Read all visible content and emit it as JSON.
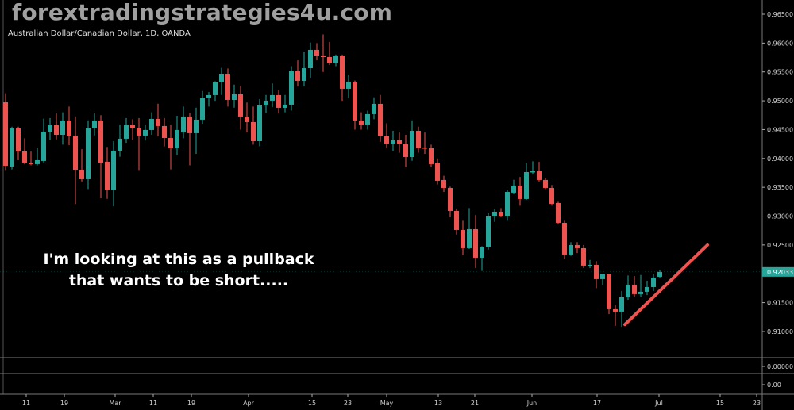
{
  "header": {
    "symbol_title": "Australian Dollar/Canadian Dollar, 1D, OANDA",
    "watermark": "forextradingstrategies4u.com"
  },
  "annotation": {
    "line1": "I'm looking at this as a pullback",
    "line2": "that wants to be short....."
  },
  "colors": {
    "up": "#26a69a",
    "down": "#ef5350",
    "trendline": "#ef5350",
    "background": "#000000",
    "last_price_badge": "#26a69a"
  },
  "chart_data": {
    "type": "candlestick",
    "title": "Australian Dollar/Canadian Dollar, 1D, OANDA",
    "ylim": [
      0.9075,
      0.9675
    ],
    "y_ticks": [
      "0.96500",
      "0.96000",
      "0.95500",
      "0.95000",
      "0.94500",
      "0.94000",
      "0.93500",
      "0.93000",
      "0.92500",
      "0.91500",
      "0.91000"
    ],
    "last_price": "0.92033",
    "x_ticks": [
      "11",
      "19",
      "Mar",
      "11",
      "19",
      "Apr",
      "15",
      "23",
      "May",
      "13",
      "21",
      "Jun",
      "17",
      "Jul",
      "15",
      "23"
    ],
    "sub_panes": [
      {
        "value_label": "0.00000"
      },
      {
        "value_label": "0.00"
      }
    ],
    "grid": false,
    "ohlc_fields": [
      "open",
      "high",
      "low",
      "close"
    ],
    "candles": [
      [
        0.94974,
        0.9513,
        0.938,
        0.93874
      ],
      [
        0.9386,
        0.9455,
        0.9381,
        0.9452
      ],
      [
        0.9452,
        0.9455,
        0.9397,
        0.94122
      ],
      [
        0.94122,
        0.9435,
        0.939,
        0.93929
      ],
      [
        0.93929,
        0.9412,
        0.9388,
        0.93902
      ],
      [
        0.93902,
        0.9418,
        0.9388,
        0.9397
      ],
      [
        0.93957,
        0.9469,
        0.9393,
        0.94465
      ],
      [
        0.94465,
        0.947,
        0.9432,
        0.94575
      ],
      [
        0.94575,
        0.9478,
        0.9433,
        0.9441
      ],
      [
        0.9441,
        0.948,
        0.9424,
        0.94658
      ],
      [
        0.94658,
        0.949,
        0.9423,
        0.94383
      ],
      [
        0.94397,
        0.9473,
        0.9321,
        0.93805
      ],
      [
        0.93805,
        0.9416,
        0.936,
        0.9364
      ],
      [
        0.9364,
        0.9466,
        0.9347,
        0.9452
      ],
      [
        0.9452,
        0.9478,
        0.944,
        0.94658
      ],
      [
        0.94658,
        0.9475,
        0.9331,
        0.93929
      ],
      [
        0.93943,
        0.942,
        0.933,
        0.93448
      ],
      [
        0.93448,
        0.943,
        0.9317,
        0.94135
      ],
      [
        0.94135,
        0.9459,
        0.9403,
        0.94342
      ],
      [
        0.94342,
        0.947,
        0.9427,
        0.94589
      ],
      [
        0.94589,
        0.9468,
        0.9432,
        0.9452
      ],
      [
        0.9452,
        0.947,
        0.938,
        0.94397
      ],
      [
        0.94397,
        0.9459,
        0.9431,
        0.94493
      ],
      [
        0.94493,
        0.948,
        0.9441,
        0.94685
      ],
      [
        0.94685,
        0.9495,
        0.9438,
        0.94562
      ],
      [
        0.94562,
        0.947,
        0.9421,
        0.94355
      ],
      [
        0.94355,
        0.9459,
        0.9381,
        0.94177
      ],
      [
        0.94177,
        0.9474,
        0.9406,
        0.94493
      ],
      [
        0.94452,
        0.949,
        0.9435,
        0.94727
      ],
      [
        0.94727,
        0.9479,
        0.9388,
        0.94438
      ],
      [
        0.94438,
        0.9488,
        0.9408,
        0.94672
      ],
      [
        0.94672,
        0.9517,
        0.946,
        0.95043
      ],
      [
        0.95043,
        0.9515,
        0.949,
        0.95098
      ],
      [
        0.95098,
        0.9534,
        0.95,
        0.95318
      ],
      [
        0.95318,
        0.9557,
        0.951,
        0.95469
      ],
      [
        0.95469,
        0.9556,
        0.949,
        0.95015
      ],
      [
        0.95015,
        0.9528,
        0.9488,
        0.95112
      ],
      [
        0.95112,
        0.9526,
        0.945,
        0.94727
      ],
      [
        0.94727,
        0.9497,
        0.9445,
        0.9463
      ],
      [
        0.9463,
        0.949,
        0.9424,
        0.943
      ],
      [
        0.943,
        0.9503,
        0.9421,
        0.94919
      ],
      [
        0.94919,
        0.951,
        0.9479,
        0.95002
      ],
      [
        0.95002,
        0.953,
        0.9489,
        0.95098
      ],
      [
        0.95098,
        0.9518,
        0.9478,
        0.94878
      ],
      [
        0.94878,
        0.951,
        0.948,
        0.94933
      ],
      [
        0.94933,
        0.956,
        0.9483,
        0.9551
      ],
      [
        0.9551,
        0.957,
        0.9525,
        0.95345
      ],
      [
        0.95345,
        0.9585,
        0.9525,
        0.95565
      ],
      [
        0.95565,
        0.9601,
        0.954,
        0.95882
      ],
      [
        0.95882,
        0.96,
        0.957,
        0.95785
      ],
      [
        0.95785,
        0.9615,
        0.955,
        0.95758
      ],
      [
        0.95758,
        0.9602,
        0.9562,
        0.95648
      ],
      [
        0.95648,
        0.958,
        0.956,
        0.95785
      ],
      [
        0.95785,
        0.958,
        0.95,
        0.95208
      ],
      [
        0.95208,
        0.9545,
        0.9505,
        0.95332
      ],
      [
        0.95332,
        0.9535,
        0.945,
        0.94658
      ],
      [
        0.94658,
        0.948,
        0.945,
        0.94589
      ],
      [
        0.94589,
        0.9483,
        0.945,
        0.94768
      ],
      [
        0.94768,
        0.9506,
        0.9468,
        0.94947
      ],
      [
        0.94947,
        0.951,
        0.9429,
        0.94383
      ],
      [
        0.94383,
        0.9461,
        0.9418,
        0.94259
      ],
      [
        0.94259,
        0.9448,
        0.9413,
        0.94314
      ],
      [
        0.94314,
        0.9445,
        0.941,
        0.94245
      ],
      [
        0.94245,
        0.9441,
        0.9385,
        0.94025
      ],
      [
        0.94025,
        0.9466,
        0.9396,
        0.94479
      ],
      [
        0.94479,
        0.9455,
        0.941,
        0.94177
      ],
      [
        0.9419,
        0.9445,
        0.9408,
        0.94177
      ],
      [
        0.94177,
        0.9424,
        0.9385,
        0.93902
      ],
      [
        0.93929,
        0.94,
        0.9355,
        0.93613
      ],
      [
        0.93627,
        0.937,
        0.9342,
        0.93489
      ],
      [
        0.93489,
        0.9351,
        0.9298,
        0.9309
      ],
      [
        0.9309,
        0.9313,
        0.9268,
        0.9276
      ],
      [
        0.9276,
        0.9292,
        0.9232,
        0.92444
      ],
      [
        0.92444,
        0.9314,
        0.9243,
        0.92774
      ],
      [
        0.92774,
        0.9302,
        0.921,
        0.92279
      ],
      [
        0.92279,
        0.9248,
        0.9205,
        0.92458
      ],
      [
        0.92458,
        0.9305,
        0.9242,
        0.92994
      ],
      [
        0.92994,
        0.9312,
        0.929,
        0.93077
      ],
      [
        0.93077,
        0.9314,
        0.9298,
        0.92994
      ],
      [
        0.92994,
        0.9346,
        0.9292,
        0.9342
      ],
      [
        0.93407,
        0.9363,
        0.9338,
        0.9353
      ],
      [
        0.9353,
        0.9368,
        0.9318,
        0.93297
      ],
      [
        0.93297,
        0.9392,
        0.9328,
        0.93764
      ],
      [
        0.93764,
        0.9395,
        0.9372,
        0.93778
      ],
      [
        0.93778,
        0.9394,
        0.936,
        0.93627
      ],
      [
        0.93627,
        0.9366,
        0.9347,
        0.93489
      ],
      [
        0.93489,
        0.9354,
        0.9318,
        0.93214
      ],
      [
        0.93228,
        0.9325,
        0.9286,
        0.92884
      ],
      [
        0.92884,
        0.9292,
        0.9226,
        0.92334
      ],
      [
        0.92334,
        0.9255,
        0.9231,
        0.92499
      ],
      [
        0.92499,
        0.9255,
        0.9236,
        0.92444
      ],
      [
        0.92444,
        0.925,
        0.921,
        0.92142
      ],
      [
        0.92142,
        0.9224,
        0.921,
        0.92155
      ],
      [
        0.92155,
        0.9222,
        0.9175,
        0.91908
      ],
      [
        0.91908,
        0.92,
        0.918,
        0.9199
      ],
      [
        0.9199,
        0.92,
        0.913,
        0.91385
      ],
      [
        0.91385,
        0.9146,
        0.911,
        0.91344
      ],
      [
        0.91344,
        0.917,
        0.9108,
        0.91592
      ],
      [
        0.91592,
        0.9197,
        0.9155,
        0.91812
      ],
      [
        0.91812,
        0.9196,
        0.916,
        0.91647
      ],
      [
        0.91647,
        0.9198,
        0.916,
        0.91688
      ],
      [
        0.91688,
        0.9188,
        0.9163,
        0.9177
      ],
      [
        0.9177,
        0.92,
        0.917,
        0.91935
      ],
      [
        0.91949,
        0.9207,
        0.9192,
        0.92032
      ]
    ],
    "annotations": [
      {
        "type": "trendline",
        "color": "#ef5350",
        "from_price": 0.9112,
        "to_price": 0.925
      }
    ]
  }
}
